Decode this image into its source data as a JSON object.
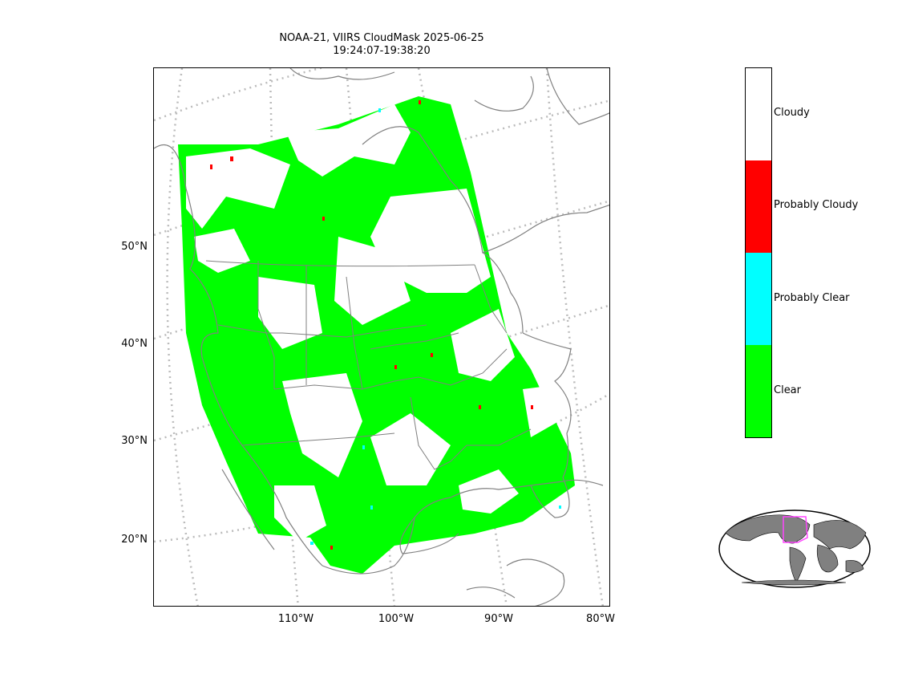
{
  "title": {
    "line1": "NOAA-21, VIIRS CloudMask 2025-06-25",
    "line2": "19:24:07-19:38:20"
  },
  "map": {
    "lat_labels": [
      "50°N",
      "40°N",
      "30°N",
      "20°N"
    ],
    "lon_labels": [
      "110°W",
      "100°W",
      "90°W",
      "80°W"
    ]
  },
  "legend": {
    "categories": [
      {
        "label": "Cloudy",
        "color": "#ffffff"
      },
      {
        "label": "Probably Cloudy",
        "color": "#ff0000"
      },
      {
        "label": "Probably Clear",
        "color": "#00ffff"
      },
      {
        "label": "Clear",
        "color": "#00ff00"
      }
    ]
  },
  "inset": {
    "land_color": "#808080",
    "box_color": "#ff44ff"
  }
}
